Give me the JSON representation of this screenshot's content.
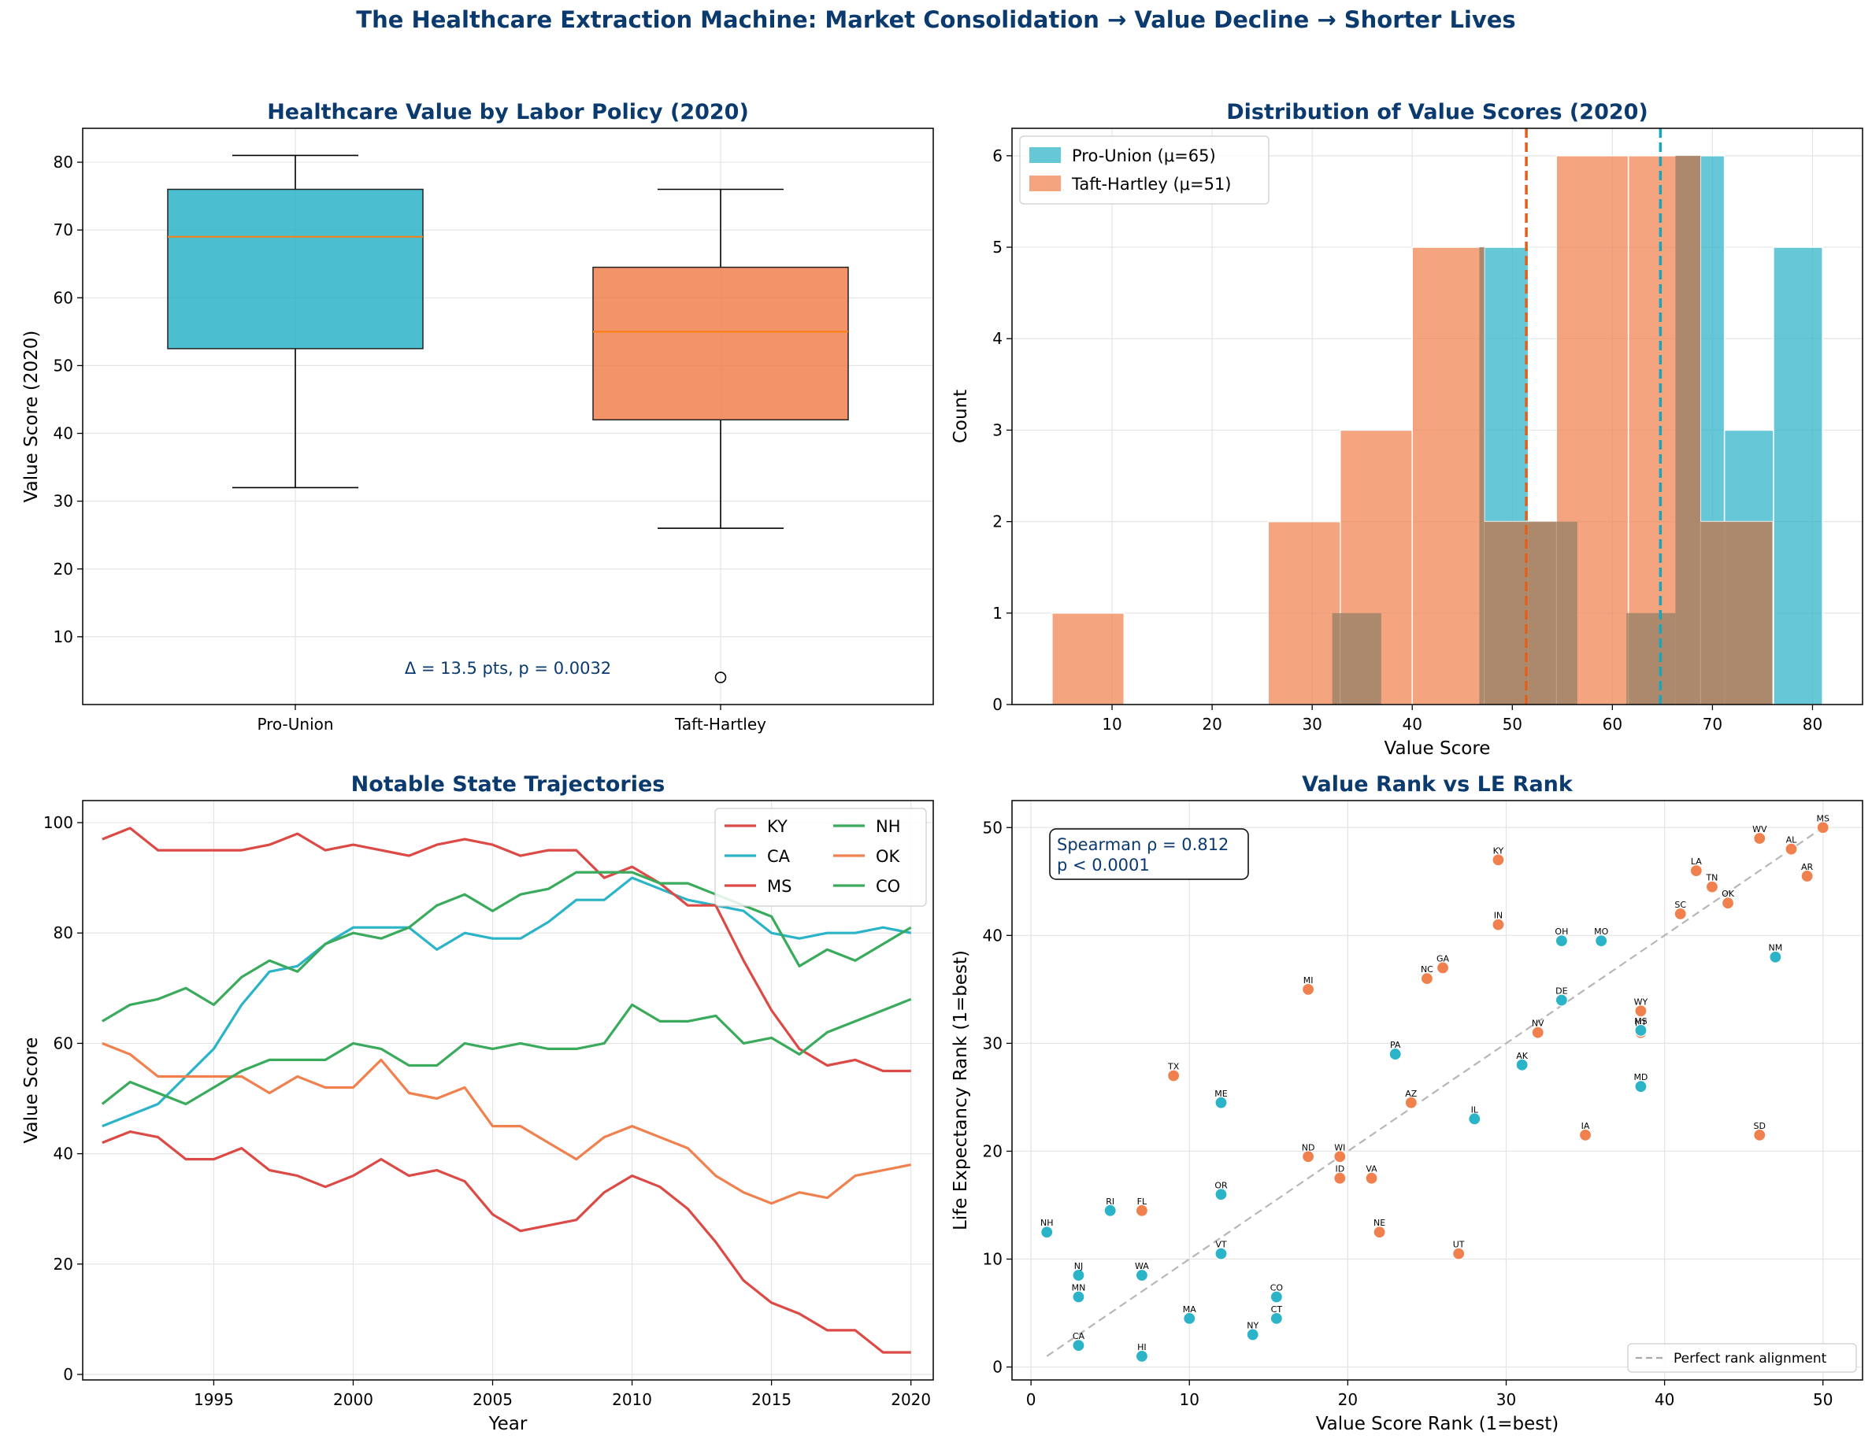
{
  "suptitle": "The Healthcare Extraction Machine: Market Consolidation → Value Decline → Shorter Lives",
  "colors": {
    "title": "#0b3a6e",
    "union": "#2bb3c8",
    "taft": "#f0814e",
    "taft_dark": "#e0601e",
    "union_dark": "#1aa5b8",
    "red": "#dc4a46",
    "green": "#3aaa5c",
    "overlap": "#a8876c"
  },
  "chart_data": [
    {
      "type": "box",
      "title": "Healthcare Value by Labor Policy (2020)",
      "ylabel": "Value Score (2020)",
      "ylim": [
        0,
        85
      ],
      "yticks": [
        "10",
        "20",
        "30",
        "40",
        "50",
        "60",
        "70",
        "80"
      ],
      "categories": [
        "Pro-Union",
        "Taft-Hartley"
      ],
      "boxes": [
        {
          "name": "Pro-Union",
          "whisker_low": 32,
          "q1": 52.5,
          "median": 69,
          "q3": 76,
          "whisker_high": 81,
          "outliers": []
        },
        {
          "name": "Taft-Hartley",
          "whisker_low": 26,
          "q1": 42,
          "median": 55,
          "q3": 64.5,
          "whisker_high": 76,
          "outliers": [
            4
          ]
        }
      ],
      "annotation": "Δ = 13.5 pts, p = 0.0032"
    },
    {
      "type": "histogram",
      "title": "Distribution of Value Scores (2020)",
      "xlabel": "Value Score",
      "ylabel": "Count",
      "xlim": [
        0,
        85
      ],
      "ylim": [
        0,
        6.3
      ],
      "xticks": [
        "10",
        "20",
        "30",
        "40",
        "50",
        "60",
        "70",
        "80"
      ],
      "yticks": [
        "0",
        "1",
        "2",
        "3",
        "4",
        "5",
        "6"
      ],
      "legend": [
        "Pro-Union (μ=65)",
        "Taft-Hartley (μ=51)"
      ],
      "legend_position": "top-left",
      "series": [
        {
          "name": "Pro-Union",
          "mean": 64.8,
          "bins": [
            [
              32,
              36.9,
              1
            ],
            [
              36.9,
              41.8,
              0
            ],
            [
              41.8,
              46.7,
              0
            ],
            [
              46.7,
              51.6,
              5
            ],
            [
              51.6,
              56.5,
              2
            ],
            [
              56.5,
              61.4,
              0
            ],
            [
              61.4,
              66.3,
              1
            ],
            [
              66.3,
              71.2,
              6
            ],
            [
              71.2,
              76.1,
              3
            ],
            [
              76.1,
              81,
              5
            ]
          ]
        },
        {
          "name": "Taft-Hartley",
          "mean": 51.4,
          "bins": [
            [
              4,
              11.2,
              1
            ],
            [
              11.2,
              18.4,
              0
            ],
            [
              18.4,
              25.6,
              0
            ],
            [
              25.6,
              32.8,
              2
            ],
            [
              32.8,
              40,
              3
            ],
            [
              40,
              47.2,
              5
            ],
            [
              47.2,
              54.4,
              2
            ],
            [
              54.4,
              61.6,
              6
            ],
            [
              61.6,
              68.8,
              6
            ],
            [
              68.8,
              76,
              2
            ]
          ]
        }
      ]
    },
    {
      "type": "line",
      "title": "Notable State Trajectories",
      "xlabel": "Year",
      "ylabel": "Value Score",
      "xlim": [
        1990.3,
        2020.8
      ],
      "ylim": [
        -1,
        104
      ],
      "xticks": [
        "1995",
        "2000",
        "2005",
        "2010",
        "2015",
        "2020"
      ],
      "yticks": [
        "0",
        "20",
        "40",
        "60",
        "80",
        "100"
      ],
      "legend_position": "top-right",
      "x": [
        1991,
        1992,
        1993,
        1994,
        1995,
        1996,
        1997,
        1998,
        1999,
        2000,
        2001,
        2002,
        2003,
        2004,
        2005,
        2006,
        2007,
        2008,
        2009,
        2010,
        2011,
        2012,
        2013,
        2014,
        2015,
        2016,
        2017,
        2018,
        2019,
        2020
      ],
      "series": [
        {
          "name": "KY",
          "color": "#dc4a46",
          "values": [
            42,
            44,
            43,
            39,
            39,
            41,
            37,
            36,
            34,
            36,
            39,
            36,
            37,
            35,
            29,
            26,
            27,
            28,
            33,
            36,
            34,
            30,
            24,
            17,
            13,
            11,
            8,
            8,
            4,
            4
          ]
        },
        {
          "name": "CA",
          "color": "#2bb3c8",
          "values": [
            45,
            47,
            49,
            54,
            59,
            67,
            73,
            74,
            78,
            81,
            81,
            81,
            77,
            80,
            79,
            79,
            82,
            86,
            86,
            90,
            88,
            86,
            85,
            84,
            80,
            79,
            80,
            80,
            81,
            80
          ]
        },
        {
          "name": "MS",
          "color": "#dc4a46",
          "values": [
            97,
            99,
            95,
            95,
            95,
            95,
            96,
            98,
            95,
            96,
            95,
            94,
            96,
            97,
            96,
            94,
            95,
            95,
            90,
            92,
            89,
            85,
            85,
            75,
            66,
            59,
            56,
            57,
            55,
            55
          ]
        },
        {
          "name": "NH",
          "color": "#3aaa5c",
          "values": [
            64,
            67,
            68,
            70,
            67,
            72,
            75,
            73,
            78,
            80,
            79,
            81,
            85,
            87,
            84,
            87,
            88,
            91,
            91,
            91,
            89,
            89,
            87,
            85,
            83,
            74,
            77,
            75,
            78,
            81
          ]
        },
        {
          "name": "OK",
          "color": "#f0814e",
          "values": [
            60,
            58,
            54,
            54,
            54,
            54,
            51,
            54,
            52,
            52,
            57,
            51,
            50,
            52,
            45,
            45,
            42,
            39,
            43,
            45,
            43,
            41,
            36,
            33,
            31,
            33,
            32,
            36,
            37,
            38
          ]
        },
        {
          "name": "CO",
          "color": "#3aaa5c",
          "values": [
            49,
            53,
            51,
            49,
            52,
            55,
            57,
            57,
            57,
            60,
            59,
            56,
            56,
            60,
            59,
            60,
            59,
            59,
            60,
            67,
            64,
            64,
            65,
            60,
            61,
            58,
            62,
            64,
            66,
            68
          ]
        }
      ]
    },
    {
      "type": "scatter",
      "title": "Value Rank vs LE Rank",
      "xlabel": "Value Score Rank (1=best)",
      "ylabel": "Life Expectancy Rank (1=best)",
      "xlim": [
        -1.2,
        52.5
      ],
      "ylim": [
        -1.2,
        52.5
      ],
      "xticks": [
        "0",
        "10",
        "20",
        "30",
        "40",
        "50"
      ],
      "yticks": [
        "0",
        "10",
        "20",
        "30",
        "40",
        "50"
      ],
      "annotation_line1": "Spearman ρ = 0.812",
      "annotation_line2": "p < 0.0001",
      "reference_line": "Perfect rank alignment",
      "legend_position": "bottom-right",
      "points": [
        {
          "s": "NH",
          "x": 1,
          "y": 12.5,
          "g": "u"
        },
        {
          "s": "NJ",
          "x": 3,
          "y": 8.5,
          "g": "u"
        },
        {
          "s": "MN",
          "x": 3,
          "y": 6.5,
          "g": "u"
        },
        {
          "s": "CA",
          "x": 3,
          "y": 2,
          "g": "u"
        },
        {
          "s": "RI",
          "x": 5,
          "y": 14.5,
          "g": "u"
        },
        {
          "s": "FL",
          "x": 7,
          "y": 14.5,
          "g": "t"
        },
        {
          "s": "WA",
          "x": 7,
          "y": 8.5,
          "g": "u"
        },
        {
          "s": "HI",
          "x": 7,
          "y": 1,
          "g": "u"
        },
        {
          "s": "TX",
          "x": 9,
          "y": 27,
          "g": "t"
        },
        {
          "s": "MA",
          "x": 10,
          "y": 4.5,
          "g": "u"
        },
        {
          "s": "ME",
          "x": 12,
          "y": 24.5,
          "g": "u"
        },
        {
          "s": "OR",
          "x": 12,
          "y": 16,
          "g": "u"
        },
        {
          "s": "VT",
          "x": 12,
          "y": 10.5,
          "g": "u"
        },
        {
          "s": "NY",
          "x": 14,
          "y": 3,
          "g": "u"
        },
        {
          "s": "CO",
          "x": 15.5,
          "y": 6.5,
          "g": "u"
        },
        {
          "s": "CT",
          "x": 15.5,
          "y": 4.5,
          "g": "u"
        },
        {
          "s": "MI",
          "x": 17.5,
          "y": 35,
          "g": "t"
        },
        {
          "s": "ND",
          "x": 17.5,
          "y": 19.5,
          "g": "t"
        },
        {
          "s": "WI",
          "x": 19.5,
          "y": 19.5,
          "g": "t"
        },
        {
          "s": "ID",
          "x": 19.5,
          "y": 17.5,
          "g": "t"
        },
        {
          "s": "VA",
          "x": 21.5,
          "y": 17.5,
          "g": "t"
        },
        {
          "s": "NE",
          "x": 22,
          "y": 12.5,
          "g": "t"
        },
        {
          "s": "PA",
          "x": 23,
          "y": 29,
          "g": "u"
        },
        {
          "s": "AZ",
          "x": 24,
          "y": 24.5,
          "g": "t"
        },
        {
          "s": "NC",
          "x": 25,
          "y": 36,
          "g": "t"
        },
        {
          "s": "GA",
          "x": 26,
          "y": 37,
          "g": "t"
        },
        {
          "s": "UT",
          "x": 27,
          "y": 10.5,
          "g": "t"
        },
        {
          "s": "IL",
          "x": 28,
          "y": 23,
          "g": "u"
        },
        {
          "s": "KY",
          "x": 29.5,
          "y": 47,
          "g": "t"
        },
        {
          "s": "IN",
          "x": 29.5,
          "y": 41,
          "g": "t"
        },
        {
          "s": "AK",
          "x": 31,
          "y": 28,
          "g": "u"
        },
        {
          "s": "NV",
          "x": 32,
          "y": 31,
          "g": "t"
        },
        {
          "s": "OH",
          "x": 33.5,
          "y": 39.5,
          "g": "u"
        },
        {
          "s": "DE",
          "x": 33.5,
          "y": 34,
          "g": "u"
        },
        {
          "s": "IA",
          "x": 35,
          "y": 21.5,
          "g": "t"
        },
        {
          "s": "MO",
          "x": 36,
          "y": 39.5,
          "g": "u"
        },
        {
          "s": "WY",
          "x": 38.5,
          "y": 33,
          "g": "t"
        },
        {
          "s": "NT",
          "x": 38.5,
          "y": 31,
          "g": "t"
        },
        {
          "s": "MS",
          "x": 38.5,
          "y": 31.2,
          "g": "u"
        },
        {
          "s": "MD",
          "x": 38.5,
          "y": 26,
          "g": "u"
        },
        {
          "s": "SC",
          "x": 41,
          "y": 42,
          "g": "t"
        },
        {
          "s": "LA",
          "x": 42,
          "y": 46,
          "g": "t"
        },
        {
          "s": "TN",
          "x": 43,
          "y": 44.5,
          "g": "t"
        },
        {
          "s": "OK",
          "x": 44,
          "y": 43,
          "g": "t"
        },
        {
          "s": "WV",
          "x": 46,
          "y": 49,
          "g": "t"
        },
        {
          "s": "SD",
          "x": 46,
          "y": 21.5,
          "g": "t"
        },
        {
          "s": "NM",
          "x": 47,
          "y": 38,
          "g": "u"
        },
        {
          "s": "AL",
          "x": 48,
          "y": 48,
          "g": "t"
        },
        {
          "s": "AR",
          "x": 49,
          "y": 45.5,
          "g": "t"
        },
        {
          "s": "MS",
          "x": 50,
          "y": 50,
          "g": "t"
        }
      ]
    }
  ]
}
